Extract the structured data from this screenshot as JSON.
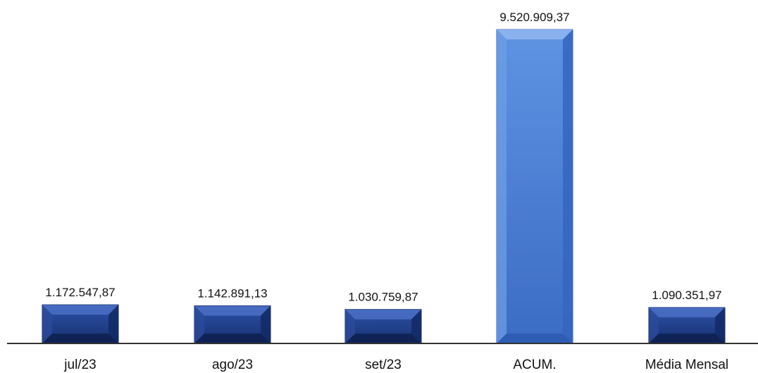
{
  "chart_data": {
    "type": "bar",
    "categories": [
      "jul/23",
      "ago/23",
      "set/23",
      "ACUM.",
      "Média Mensal"
    ],
    "values": [
      1172547.87,
      1142891.13,
      1030759.87,
      9520909.37,
      1090351.97
    ],
    "value_labels": [
      "1.172.547,87",
      "1.142.891,13",
      "1.030.759,87",
      "9.520.909,37",
      "1.090.351,97"
    ],
    "bar_colors": [
      "#1f3d8c",
      "#1f3d8c",
      "#1f3d8c",
      "#4a7fd4",
      "#1f3d8c"
    ],
    "title": "",
    "xlabel": "",
    "ylabel": "",
    "ylim": [
      0,
      10000000
    ],
    "grid": false,
    "legend": "none"
  }
}
